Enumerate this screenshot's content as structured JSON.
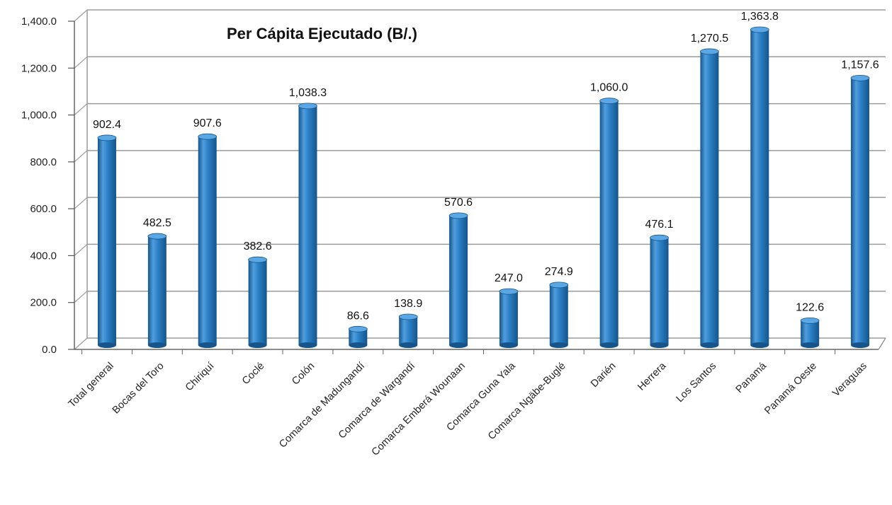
{
  "chart_data": {
    "type": "bar",
    "title": "Per Cápita Ejecutado (B/.)",
    "xlabel": "",
    "ylabel": "",
    "ylim": [
      0,
      1400
    ],
    "yticks": [
      "0.0",
      "200.0",
      "400.0",
      "600.0",
      "800.0",
      "1,000.0",
      "1,200.0",
      "1,400.0"
    ],
    "grid": true,
    "legend": "none",
    "categories": [
      "Total general",
      "Bocas del Toro",
      "Chiriquí",
      "Coclé",
      "Colón",
      "Comarca de Madungandí",
      "Comarca de Wargandí",
      "Comarca Emberá Wounaan",
      "Comarca Guna Yala",
      "Comarca Ngäbe-Buglé",
      "Darién",
      "Herrera",
      "Los Santos",
      "Panamá",
      "Panamá Oeste",
      "Veraguas"
    ],
    "values": [
      902.4,
      482.5,
      907.6,
      382.6,
      1038.3,
      86.6,
      138.9,
      570.6,
      247.0,
      274.9,
      1060.0,
      476.1,
      1270.5,
      1363.8,
      122.6,
      1157.6
    ],
    "value_labels": [
      "902.4",
      "482.5",
      "907.6",
      "382.6",
      "1,038.3",
      "86.6",
      "138.9",
      "570.6",
      "247.0",
      "274.9",
      "1,060.0",
      "476.1",
      "1,270.5",
      "1,363.8",
      "122.6",
      "1,157.6"
    ],
    "colors": {
      "bar": "#2a7fc4",
      "bar_dark": "#15558c",
      "bar_light": "#5ba7e3",
      "grid": "#9a9a9a"
    }
  }
}
